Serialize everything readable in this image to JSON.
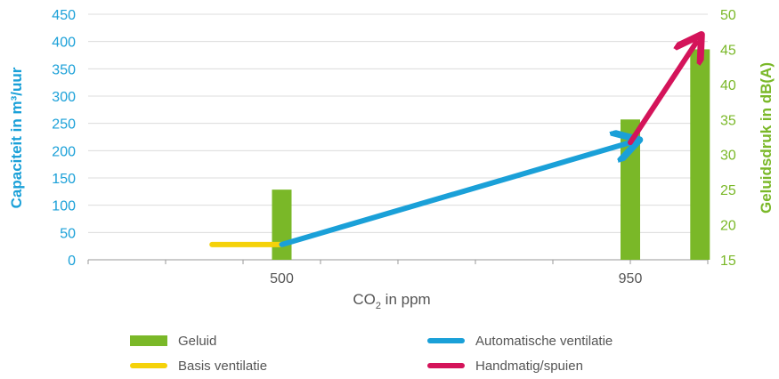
{
  "chart_data": {
    "type": "bar+line",
    "xlabel_main": "CO",
    "xlabel_sub": "2",
    "xlabel_rest": " in ppm",
    "ylabel_left": "Capaciteit in m³/uur",
    "ylabel_right": "Geluidsdruk in dB(A)",
    "ylim_left": [
      0,
      450
    ],
    "ylim_right": [
      15,
      50
    ],
    "left_ticks": [
      0,
      50,
      100,
      150,
      200,
      250,
      300,
      350,
      400,
      450
    ],
    "right_ticks": [
      15,
      20,
      25,
      30,
      35,
      40,
      45,
      50
    ],
    "x_ticks": [
      500,
      950
    ],
    "x_tick_labels": [
      "500",
      "950"
    ],
    "xlim": [
      250,
      1050
    ],
    "grid": "horizontal",
    "bars": {
      "name": "Geluid",
      "axis": "right",
      "color": "#7ab828",
      "points": [
        {
          "x": 500,
          "y": 25
        },
        {
          "x": 950,
          "y": 35
        },
        {
          "x": 1040,
          "y": 45
        }
      ]
    },
    "lines": [
      {
        "name": "Basis ventilatie",
        "color": "#f5d20a",
        "axis": "left",
        "points": [
          {
            "x": 410,
            "y": 28
          },
          {
            "x": 500,
            "y": 28
          }
        ]
      },
      {
        "name": "Automatische ventilatie",
        "color": "#1aa0d8",
        "axis": "left",
        "points": [
          {
            "x": 500,
            "y": 28
          },
          {
            "x": 950,
            "y": 215
          }
        ]
      },
      {
        "name": "Handmatig/spuien",
        "color": "#d4145a",
        "axis": "left",
        "points": [
          {
            "x": 950,
            "y": 215
          },
          {
            "x": 1035,
            "y": 398
          }
        ]
      }
    ]
  },
  "legend": [
    {
      "label": "Geluid",
      "color": "#7ab828",
      "kind": "bar"
    },
    {
      "label": "Automatische ventilatie",
      "color": "#1aa0d8",
      "kind": "line"
    },
    {
      "label": "Basis ventilatie",
      "color": "#f5d20a",
      "kind": "line"
    },
    {
      "label": "Handmatig/spuien",
      "color": "#d4145a",
      "kind": "line"
    }
  ]
}
